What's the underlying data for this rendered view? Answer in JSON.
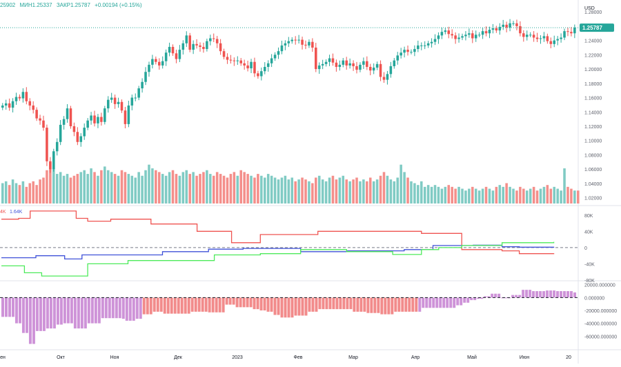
{
  "ohlc_header": {
    "open": "25902",
    "low": "МИН1.25337",
    "close": "ЗАКР1.25787",
    "change": "+0.00194 (+0.15%)"
  },
  "indicator_header": {
    "a": "4K",
    "b": "1.64K"
  },
  "colors": {
    "up": "#26a69a",
    "down": "#ef5350",
    "vol_up": "#80cbc4",
    "vol_down": "#f48f8b",
    "price_tag": "#26a69a",
    "line_red": "#ef5350",
    "line_blue": "#3f51d8",
    "line_green": "#4cea5a",
    "hist_purple": "#ce93d8",
    "hist_salmon": "#f28b8b"
  },
  "chart_data": [
    {
      "type": "candlestick",
      "currency": "USD",
      "last_price": "1.25787",
      "ylim": [
        1.01,
        1.285
      ],
      "y_ticks": [
        "1.28000",
        "1.24000",
        "1.22000",
        "1.20000",
        "1.18000",
        "1.16000",
        "1.14000",
        "1.12000",
        "1.10000",
        "1.08000",
        "1.06000",
        "1.04000",
        "1.02000"
      ],
      "x_ticks": [
        "ен",
        "Окт",
        "Ноя",
        "Дек",
        "2023",
        "Фев",
        "Мар",
        "Апр",
        "Май",
        "Июн",
        "20"
      ],
      "close": [
        1.149,
        1.152,
        1.146,
        1.155,
        1.161,
        1.159,
        1.168,
        1.155,
        1.149,
        1.143,
        1.131,
        1.128,
        1.118,
        1.071,
        1.06,
        1.085,
        1.098,
        1.122,
        1.13,
        1.145,
        1.12,
        1.112,
        1.098,
        1.106,
        1.118,
        1.128,
        1.135,
        1.124,
        1.133,
        1.126,
        1.145,
        1.157,
        1.16,
        1.151,
        1.154,
        1.142,
        1.123,
        1.149,
        1.16,
        1.16,
        1.173,
        1.182,
        1.196,
        1.206,
        1.214,
        1.21,
        1.205,
        1.211,
        1.223,
        1.231,
        1.222,
        1.214,
        1.227,
        1.236,
        1.247,
        1.227,
        1.235,
        1.233,
        1.231,
        1.228,
        1.239,
        1.243,
        1.242,
        1.236,
        1.225,
        1.217,
        1.213,
        1.212,
        1.211,
        1.212,
        1.208,
        1.205,
        1.201,
        1.21,
        1.194,
        1.19,
        1.197,
        1.203,
        1.208,
        1.215,
        1.22,
        1.225,
        1.233,
        1.236,
        1.239,
        1.241,
        1.24,
        1.241,
        1.234,
        1.233,
        1.238,
        1.23,
        1.2,
        1.205,
        1.207,
        1.21,
        1.215,
        1.209,
        1.203,
        1.206,
        1.212,
        1.205,
        1.208,
        1.204,
        1.199,
        1.206,
        1.211,
        1.203,
        1.198,
        1.202,
        1.207,
        1.189,
        1.185,
        1.193,
        1.204,
        1.212,
        1.219,
        1.223,
        1.227,
        1.224,
        1.224,
        1.228,
        1.233,
        1.233,
        1.233,
        1.236,
        1.238,
        1.242,
        1.247,
        1.252,
        1.254,
        1.249,
        1.247,
        1.242,
        1.244,
        1.246,
        1.248,
        1.25,
        1.243,
        1.248,
        1.248,
        1.253,
        1.25,
        1.255,
        1.257,
        1.254,
        1.259,
        1.262,
        1.258,
        1.264,
        1.264,
        1.26,
        1.25,
        1.245,
        1.248,
        1.248,
        1.244,
        1.242,
        1.243,
        1.246,
        1.239,
        1.235,
        1.24,
        1.242,
        1.244,
        1.253,
        1.252,
        1.25,
        1.258
      ]
    },
    {
      "type": "bar",
      "name_visible": false,
      "x_ticks": [
        "ен",
        "Окт",
        "Ноя",
        "Дек",
        "2023",
        "Фев",
        "Мар",
        "Апр",
        "Май",
        "Июн",
        "20"
      ],
      "values_relative": [
        0.55,
        0.6,
        0.5,
        0.65,
        0.55,
        0.5,
        0.6,
        0.45,
        0.55,
        0.6,
        0.5,
        0.65,
        0.7,
        0.9,
        1.1,
        0.95,
        0.8,
        0.85,
        0.75,
        0.8,
        0.7,
        0.75,
        0.8,
        0.85,
        0.9,
        0.8,
        0.95,
        0.85,
        0.75,
        0.9,
        1.0,
        0.9,
        0.85,
        0.8,
        0.75,
        0.9,
        0.85,
        0.8,
        0.75,
        0.7,
        0.85,
        0.75,
        0.9,
        1.05,
        0.95,
        0.9,
        0.85,
        0.8,
        0.75,
        0.85,
        0.9,
        0.8,
        0.75,
        0.85,
        0.9,
        0.8,
        0.85,
        0.75,
        0.8,
        0.85,
        0.9,
        0.8,
        0.75,
        0.85,
        0.8,
        0.75,
        0.7,
        0.8,
        0.85,
        0.75,
        0.9,
        0.85,
        0.8,
        0.75,
        0.7,
        0.8,
        0.75,
        0.7,
        0.8,
        0.75,
        0.7,
        0.65,
        0.7,
        0.75,
        0.65,
        0.7,
        0.6,
        0.65,
        0.7,
        0.65,
        0.6,
        0.55,
        0.7,
        0.75,
        0.65,
        0.6,
        0.7,
        0.75,
        0.65,
        0.7,
        0.75,
        0.65,
        0.6,
        0.65,
        0.7,
        0.6,
        0.65,
        0.6,
        0.7,
        0.6,
        0.65,
        0.75,
        0.85,
        0.75,
        0.65,
        0.6,
        0.7,
        1.05,
        0.85,
        0.7,
        0.6,
        0.55,
        0.5,
        0.6,
        0.45,
        0.5,
        0.45,
        0.5,
        0.45,
        0.4,
        0.45,
        0.5,
        0.45,
        0.4,
        0.45,
        0.4,
        0.35,
        0.4,
        0.45,
        0.4,
        0.35,
        0.4,
        0.45,
        0.4,
        0.35,
        0.45,
        0.5,
        0.45,
        0.55,
        0.45,
        0.4,
        0.35,
        0.45,
        0.4,
        0.35,
        0.4,
        0.45,
        0.35,
        0.4,
        0.45,
        0.5,
        0.4,
        0.45,
        0.4,
        0.35,
        0.95,
        0.45,
        0.4,
        0.35,
        0.35
      ]
    },
    {
      "type": "line",
      "ylim": [
        -80000,
        100000
      ],
      "y_ticks": [
        "80K",
        "40K",
        "0",
        "-40K",
        "-80K"
      ],
      "series": [
        {
          "color_key": "line_red",
          "x": [
            0,
            0.03,
            0.05,
            0.1,
            0.13,
            0.15,
            0.19,
            0.26,
            0.34,
            0.4,
            0.45,
            0.55,
            0.73,
            0.8,
            0.87,
            0.9,
            0.96
          ],
          "y": [
            70000,
            72000,
            90000,
            90000,
            72000,
            65000,
            70000,
            58000,
            40000,
            12000,
            32000,
            40000,
            35000,
            -5000,
            -8000,
            -15000,
            -14000
          ]
        },
        {
          "color_key": "line_blue",
          "x": [
            0,
            0.06,
            0.11,
            0.14,
            0.28,
            0.36,
            0.42,
            0.52,
            0.6,
            0.7,
            0.75,
            0.82,
            0.87,
            0.9,
            0.96
          ],
          "y": [
            -25000,
            -20000,
            -28000,
            -18000,
            -10000,
            -4000,
            -2000,
            -10000,
            -8000,
            -5000,
            5000,
            6000,
            2000,
            1000,
            2000
          ]
        },
        {
          "color_key": "line_green",
          "x": [
            0,
            0.04,
            0.07,
            0.15,
            0.22,
            0.37,
            0.45,
            0.52,
            0.6,
            0.68,
            0.73,
            0.76,
            0.8,
            0.87,
            0.96
          ],
          "y": [
            -45000,
            -62000,
            -70000,
            -40000,
            -32000,
            -18000,
            -15000,
            -5000,
            -10000,
            -17000,
            -5000,
            0,
            5000,
            12000,
            14000
          ]
        }
      ]
    },
    {
      "type": "bar",
      "ylim": [
        -80000,
        25000
      ],
      "y_ticks": [
        "20000.000000",
        "0.000000",
        "-20000.000000",
        "-40000.000000",
        "-60000.000000"
      ],
      "values": [
        -30000,
        -30000,
        -30000,
        -30000,
        -40000,
        -40000,
        -55000,
        -55000,
        -72000,
        -72000,
        -52000,
        -52000,
        -52000,
        -48000,
        -48000,
        -48000,
        -42000,
        -42000,
        -40000,
        -40000,
        -40000,
        -48000,
        -48000,
        -48000,
        -48000,
        -40000,
        -40000,
        -40000,
        -40000,
        -32000,
        -32000,
        -32000,
        -32000,
        -32000,
        -32000,
        -33000,
        -36000,
        -36000,
        -36000,
        -33000,
        -33000,
        -26000,
        -26000,
        -26000,
        -22000,
        -22000,
        -22000,
        -25000,
        -25000,
        -25000,
        -25000,
        -25000,
        -25000,
        -25000,
        -25000,
        -22000,
        -22000,
        -22000,
        -22000,
        -22000,
        -23000,
        -23000,
        -23000,
        -23000,
        -23000,
        -11000,
        -11000,
        -11000,
        -15000,
        -15000,
        -15000,
        -15000,
        -15000,
        -18000,
        -18000,
        -20000,
        -20000,
        -22000,
        -22000,
        -27000,
        -27000,
        -31000,
        -31000,
        -31000,
        -31000,
        -28000,
        -28000,
        -28000,
        -28000,
        -22000,
        -22000,
        -22000,
        -18000,
        -18000,
        -18000,
        -18000,
        -18000,
        -18000,
        -18000,
        -18000,
        -18000,
        -18000,
        -22000,
        -22000,
        -22000,
        -22000,
        -24000,
        -24000,
        -24000,
        -24000,
        -26000,
        -26000,
        -26000,
        -26000,
        -22000,
        -22000,
        -22000,
        -22000,
        -22000,
        -22000,
        -22000,
        -22000,
        -16000,
        -16000,
        -16000,
        -16000,
        -16000,
        -16000,
        -16000,
        -16000,
        -16000,
        -16000,
        -12000,
        -12000,
        -8000,
        -8000,
        -4000,
        -4000,
        -2000,
        -2000,
        2000,
        2000,
        6000,
        6000,
        6000,
        -1000,
        -1000,
        -1000,
        4000,
        4000,
        4000,
        12000,
        12000,
        12000,
        10000,
        10000,
        10000,
        10000,
        11000,
        11000,
        11000,
        10000,
        10000,
        10000,
        10000,
        10000,
        8000
      ]
    }
  ]
}
